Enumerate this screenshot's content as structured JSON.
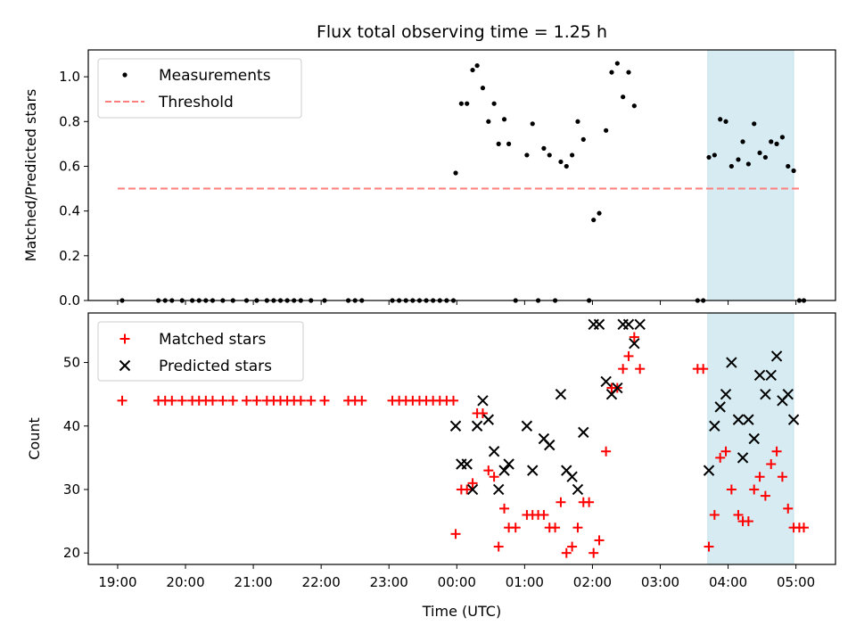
{
  "chart_data": [
    {
      "type": "scatter",
      "title": "Flux total observing time = 1.25 h",
      "ylabel": "Matched/Predicted stars",
      "xlabel": "",
      "ylim": [
        0,
        1.12
      ],
      "yticks": [
        0.0,
        0.2,
        0.4,
        0.6,
        0.8,
        1.0
      ],
      "ytick_labels": [
        "0.0",
        "0.2",
        "0.4",
        "0.6",
        "0.8",
        "1.0"
      ],
      "grid": false,
      "legend": "top-left",
      "shaded_span": {
        "start": "03:42",
        "end": "04:58",
        "color": "#add8e6"
      },
      "threshold": {
        "name": "Threshold",
        "value": 0.5,
        "start": "19:00",
        "end": "05:05",
        "color": "#ff7f7f"
      },
      "series": [
        {
          "name": "Measurements",
          "marker": "dot",
          "color": "#000000",
          "points": [
            [
              "19:04",
              0
            ],
            [
              "19:36",
              0
            ],
            [
              "19:42",
              0
            ],
            [
              "19:48",
              0
            ],
            [
              "19:57",
              0
            ],
            [
              "20:06",
              0
            ],
            [
              "20:12",
              0
            ],
            [
              "20:18",
              0
            ],
            [
              "20:24",
              0
            ],
            [
              "20:33",
              0
            ],
            [
              "20:42",
              0
            ],
            [
              "20:54",
              0
            ],
            [
              "21:03",
              0
            ],
            [
              "21:12",
              0
            ],
            [
              "21:18",
              0
            ],
            [
              "21:24",
              0
            ],
            [
              "21:30",
              0
            ],
            [
              "21:36",
              0
            ],
            [
              "21:42",
              0
            ],
            [
              "21:51",
              0
            ],
            [
              "22:03",
              0
            ],
            [
              "22:24",
              0
            ],
            [
              "22:30",
              0
            ],
            [
              "22:36",
              0
            ],
            [
              "23:03",
              0
            ],
            [
              "23:09",
              0
            ],
            [
              "23:15",
              0
            ],
            [
              "23:21",
              0
            ],
            [
              "23:27",
              0
            ],
            [
              "23:33",
              0
            ],
            [
              "23:39",
              0
            ],
            [
              "23:45",
              0
            ],
            [
              "23:51",
              0
            ],
            [
              "23:57",
              0
            ],
            [
              "23:59",
              0.57
            ],
            [
              "00:04",
              0.88
            ],
            [
              "00:09",
              0.88
            ],
            [
              "00:14",
              1.03
            ],
            [
              "00:18",
              1.05
            ],
            [
              "00:23",
              0.95
            ],
            [
              "00:28",
              0.8
            ],
            [
              "00:33",
              0.88
            ],
            [
              "00:37",
              0.7
            ],
            [
              "00:42",
              0.81
            ],
            [
              "00:46",
              0.7
            ],
            [
              "00:52",
              0
            ],
            [
              "01:02",
              0.65
            ],
            [
              "01:07",
              0.79
            ],
            [
              "01:12",
              0
            ],
            [
              "01:17",
              0.68
            ],
            [
              "01:22",
              0.65
            ],
            [
              "01:27",
              0
            ],
            [
              "01:32",
              0.62
            ],
            [
              "01:37",
              0.6
            ],
            [
              "01:42",
              0.65
            ],
            [
              "01:47",
              0.8
            ],
            [
              "01:52",
              0.72
            ],
            [
              "01:57",
              0
            ],
            [
              "02:01",
              0.36
            ],
            [
              "02:06",
              0.39
            ],
            [
              "02:12",
              0.76
            ],
            [
              "02:17",
              1.02
            ],
            [
              "02:22",
              1.06
            ],
            [
              "02:27",
              0.91
            ],
            [
              "02:32",
              1.02
            ],
            [
              "02:37",
              0.87
            ],
            [
              "03:33",
              0
            ],
            [
              "03:38",
              0
            ],
            [
              "03:43",
              0.64
            ],
            [
              "03:48",
              0.65
            ],
            [
              "03:53",
              0.81
            ],
            [
              "03:58",
              0.8
            ],
            [
              "04:03",
              0.6
            ],
            [
              "04:09",
              0.63
            ],
            [
              "04:13",
              0.71
            ],
            [
              "04:18",
              0.61
            ],
            [
              "04:23",
              0.79
            ],
            [
              "04:28",
              0.66
            ],
            [
              "04:33",
              0.64
            ],
            [
              "04:38",
              0.71
            ],
            [
              "04:43",
              0.7
            ],
            [
              "04:48",
              0.73
            ],
            [
              "04:53",
              0.6
            ],
            [
              "04:58",
              0.58
            ],
            [
              "05:03",
              0
            ],
            [
              "05:07",
              0
            ]
          ]
        }
      ]
    },
    {
      "type": "scatter",
      "title": "",
      "ylabel": "Count",
      "xlabel": "Time (UTC)",
      "ylim": [
        18.2,
        57.8
      ],
      "yticks": [
        20,
        30,
        40,
        50
      ],
      "ytick_labels": [
        "20",
        "30",
        "40",
        "50"
      ],
      "xticks": [
        "19:00",
        "20:00",
        "21:00",
        "22:00",
        "23:00",
        "00:00",
        "01:00",
        "02:00",
        "03:00",
        "04:00",
        "05:00"
      ],
      "grid": false,
      "legend": "top-left",
      "shaded_span": {
        "start": "03:42",
        "end": "04:58",
        "color": "#add8e6"
      },
      "series": [
        {
          "name": "Matched stars",
          "marker": "plus",
          "color": "#ff0000",
          "points": [
            [
              "19:04",
              44
            ],
            [
              "19:36",
              44
            ],
            [
              "19:42",
              44
            ],
            [
              "19:48",
              44
            ],
            [
              "19:57",
              44
            ],
            [
              "20:06",
              44
            ],
            [
              "20:12",
              44
            ],
            [
              "20:18",
              44
            ],
            [
              "20:24",
              44
            ],
            [
              "20:33",
              44
            ],
            [
              "20:42",
              44
            ],
            [
              "20:54",
              44
            ],
            [
              "21:03",
              44
            ],
            [
              "21:12",
              44
            ],
            [
              "21:18",
              44
            ],
            [
              "21:24",
              44
            ],
            [
              "21:30",
              44
            ],
            [
              "21:36",
              44
            ],
            [
              "21:42",
              44
            ],
            [
              "21:51",
              44
            ],
            [
              "22:03",
              44
            ],
            [
              "22:24",
              44
            ],
            [
              "22:30",
              44
            ],
            [
              "22:36",
              44
            ],
            [
              "23:03",
              44
            ],
            [
              "23:09",
              44
            ],
            [
              "23:15",
              44
            ],
            [
              "23:21",
              44
            ],
            [
              "23:27",
              44
            ],
            [
              "23:33",
              44
            ],
            [
              "23:39",
              44
            ],
            [
              "23:45",
              44
            ],
            [
              "23:51",
              44
            ],
            [
              "23:57",
              44
            ],
            [
              "23:59",
              23
            ],
            [
              "00:04",
              30
            ],
            [
              "00:09",
              30
            ],
            [
              "00:14",
              31
            ],
            [
              "00:18",
              42
            ],
            [
              "00:23",
              42
            ],
            [
              "00:28",
              33
            ],
            [
              "00:33",
              32
            ],
            [
              "00:37",
              21
            ],
            [
              "00:42",
              27
            ],
            [
              "00:46",
              24
            ],
            [
              "00:52",
              24
            ],
            [
              "01:02",
              26
            ],
            [
              "01:07",
              26
            ],
            [
              "01:12",
              26
            ],
            [
              "01:17",
              26
            ],
            [
              "01:22",
              24
            ],
            [
              "01:27",
              24
            ],
            [
              "01:32",
              28
            ],
            [
              "01:37",
              20
            ],
            [
              "01:42",
              21
            ],
            [
              "01:47",
              24
            ],
            [
              "01:52",
              28
            ],
            [
              "01:57",
              28
            ],
            [
              "02:01",
              20
            ],
            [
              "02:06",
              22
            ],
            [
              "02:12",
              36
            ],
            [
              "02:17",
              46
            ],
            [
              "02:22",
              46
            ],
            [
              "02:27",
              49
            ],
            [
              "02:32",
              51
            ],
            [
              "02:37",
              54
            ],
            [
              "02:42",
              49
            ],
            [
              "03:33",
              49
            ],
            [
              "03:38",
              49
            ],
            [
              "03:43",
              21
            ],
            [
              "03:48",
              26
            ],
            [
              "03:53",
              35
            ],
            [
              "03:58",
              36
            ],
            [
              "04:03",
              30
            ],
            [
              "04:09",
              26
            ],
            [
              "04:13",
              25
            ],
            [
              "04:18",
              25
            ],
            [
              "04:23",
              30
            ],
            [
              "04:28",
              32
            ],
            [
              "04:33",
              29
            ],
            [
              "04:38",
              34
            ],
            [
              "04:43",
              36
            ],
            [
              "04:48",
              32
            ],
            [
              "04:53",
              27
            ],
            [
              "04:58",
              24
            ],
            [
              "05:03",
              24
            ],
            [
              "05:07",
              24
            ]
          ]
        },
        {
          "name": "Predicted stars",
          "marker": "x",
          "color": "#000000",
          "points": [
            [
              "23:59",
              40
            ],
            [
              "00:04",
              34
            ],
            [
              "00:09",
              34
            ],
            [
              "00:14",
              30
            ],
            [
              "00:18",
              40
            ],
            [
              "00:23",
              44
            ],
            [
              "00:28",
              41
            ],
            [
              "00:33",
              36
            ],
            [
              "00:37",
              30
            ],
            [
              "00:42",
              33
            ],
            [
              "00:46",
              34
            ],
            [
              "01:02",
              40
            ],
            [
              "01:07",
              33
            ],
            [
              "01:17",
              38
            ],
            [
              "01:22",
              37
            ],
            [
              "01:32",
              45
            ],
            [
              "01:37",
              33
            ],
            [
              "01:42",
              32
            ],
            [
              "01:47",
              30
            ],
            [
              "01:52",
              39
            ],
            [
              "02:01",
              56
            ],
            [
              "02:06",
              56
            ],
            [
              "02:12",
              47
            ],
            [
              "02:17",
              45
            ],
            [
              "02:22",
              46
            ],
            [
              "02:27",
              56
            ],
            [
              "02:32",
              56
            ],
            [
              "02:37",
              53
            ],
            [
              "02:42",
              56
            ],
            [
              "03:43",
              33
            ],
            [
              "03:48",
              40
            ],
            [
              "03:53",
              43
            ],
            [
              "03:58",
              45
            ],
            [
              "04:03",
              50
            ],
            [
              "04:09",
              41
            ],
            [
              "04:13",
              35
            ],
            [
              "04:18",
              41
            ],
            [
              "04:23",
              38
            ],
            [
              "04:28",
              48
            ],
            [
              "04:33",
              45
            ],
            [
              "04:38",
              48
            ],
            [
              "04:43",
              51
            ],
            [
              "04:48",
              44
            ],
            [
              "04:53",
              45
            ],
            [
              "04:58",
              41
            ]
          ]
        }
      ]
    }
  ]
}
